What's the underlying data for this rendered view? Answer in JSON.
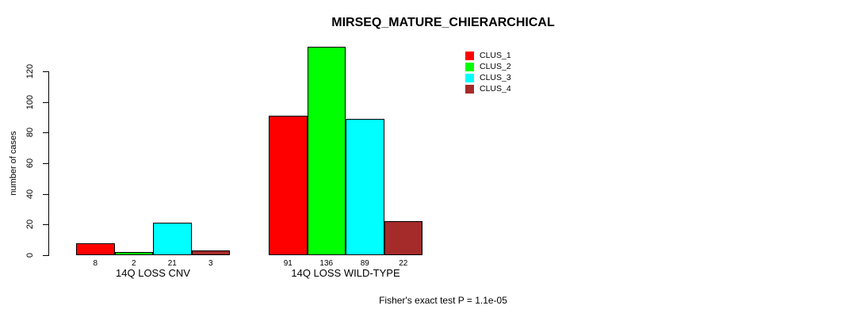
{
  "chart_data": {
    "type": "bar",
    "title": "MIRSEQ_MATURE_CHIERARCHICAL",
    "ylabel": "number of cases",
    "xlabel": "",
    "categories": [
      "14Q LOSS CNV",
      "14Q LOSS WILD-TYPE"
    ],
    "series": [
      {
        "name": "CLUS_1",
        "color": "#ff0000",
        "values": [
          8,
          91
        ]
      },
      {
        "name": "CLUS_2",
        "color": "#00ff00",
        "values": [
          2,
          136
        ]
      },
      {
        "name": "CLUS_3",
        "color": "#00ffff",
        "values": [
          21,
          89
        ]
      },
      {
        "name": "CLUS_4",
        "color": "#a52a2a",
        "values": [
          3,
          22
        ]
      }
    ],
    "bar_value_labels": [
      [
        8,
        2,
        21,
        3
      ],
      [
        91,
        136,
        89,
        22
      ]
    ],
    "yticks": [
      0,
      20,
      40,
      60,
      80,
      100,
      120
    ],
    "ylim": [
      0,
      136
    ],
    "grid": false,
    "legend_position": "top-right",
    "annotation": "Fisher's exact test P = 1.1e-05"
  }
}
